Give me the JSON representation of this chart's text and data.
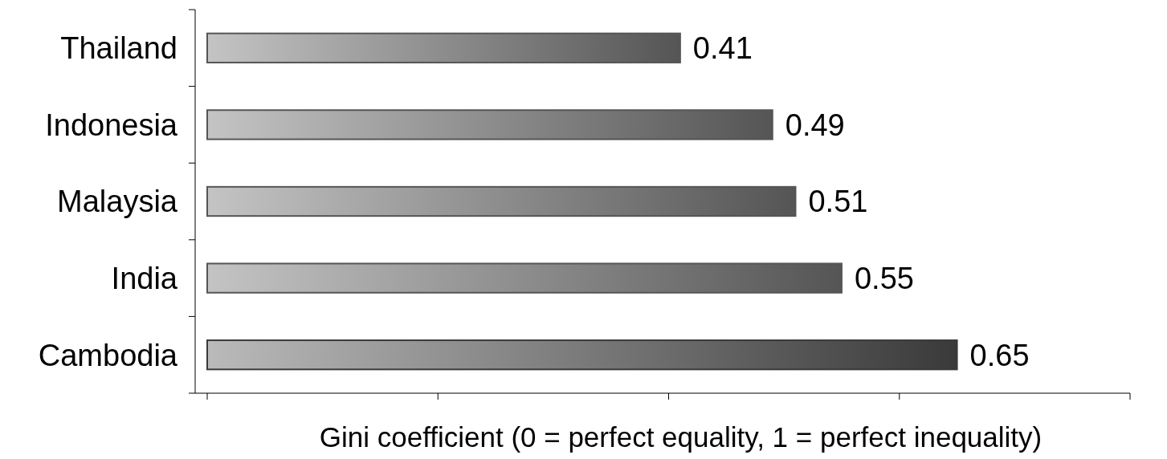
{
  "chart_data": {
    "type": "bar",
    "orientation": "horizontal",
    "categories": [
      "Thailand",
      "Indonesia",
      "Malaysia",
      "India",
      "Cambodia"
    ],
    "values": [
      0.41,
      0.49,
      0.51,
      0.55,
      0.65
    ],
    "colors": [
      "#555555",
      "#555555",
      "#555555",
      "#555555",
      "#3a3a3a"
    ],
    "xlabel": "Gini coefficient (0 = perfect equality, 1 = perfect inequality)",
    "xlim": [
      0,
      0.8
    ],
    "xticks": [
      {
        "value": 0,
        "label": null
      },
      {
        "value": 0.2,
        "label": null
      },
      {
        "value": 0.4,
        "label": null
      },
      {
        "value": 0.6,
        "label": null
      },
      {
        "value": 0.8,
        "label": null
      }
    ],
    "tick_labels": "y",
    "data_labels": true,
    "grid": false
  }
}
